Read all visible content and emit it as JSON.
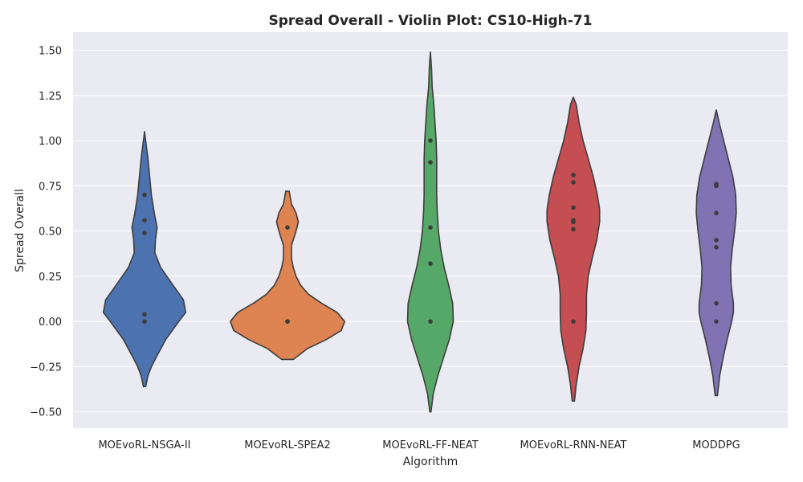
{
  "chart_data": {
    "type": "violin",
    "title": "Spread Overall - Violin Plot: CS10-High-71",
    "xlabel": "Algorithm",
    "ylabel": "Spread Overall",
    "ylim": [
      -0.59,
      1.6
    ],
    "yticks": [
      -0.5,
      -0.25,
      0.0,
      0.25,
      0.5,
      0.75,
      1.0,
      1.25,
      1.5
    ],
    "ytick_labels": [
      "−0.50",
      "−0.25",
      "0.00",
      "0.25",
      "0.50",
      "0.75",
      "1.00",
      "1.25",
      "1.50"
    ],
    "grid": true,
    "background_color": "#eaeaf2",
    "categories": [
      "MOEvoRL-NSGA-II",
      "MOEvoRL-SPEA2",
      "MOEvoRL-FF-NEAT",
      "MOEvoRL-RNN-NEAT",
      "MODDPG"
    ],
    "series": [
      {
        "name": "MOEvoRL-NSGA-II",
        "color": "#4c72b0",
        "points": [
          0.0,
          0.0,
          0.04,
          0.49,
          0.56,
          0.7
        ],
        "density_profile": [
          [
            -0.36,
            0.02
          ],
          [
            -0.3,
            0.06
          ],
          [
            -0.25,
            0.12
          ],
          [
            -0.2,
            0.2
          ],
          [
            -0.1,
            0.37
          ],
          [
            0.0,
            0.6
          ],
          [
            0.05,
            0.72
          ],
          [
            0.12,
            0.68
          ],
          [
            0.2,
            0.5
          ],
          [
            0.3,
            0.28
          ],
          [
            0.38,
            0.18
          ],
          [
            0.45,
            0.19
          ],
          [
            0.52,
            0.22
          ],
          [
            0.6,
            0.17
          ],
          [
            0.7,
            0.12
          ],
          [
            0.8,
            0.09
          ],
          [
            0.9,
            0.06
          ],
          [
            1.0,
            0.02
          ],
          [
            1.05,
            0.0
          ]
        ]
      },
      {
        "name": "MOEvoRL-SPEA2",
        "color": "#dd8452",
        "points": [
          0.0,
          0.0,
          0.0,
          0.0,
          0.0,
          0.52
        ],
        "density_profile": [
          [
            -0.21,
            0.1
          ],
          [
            -0.15,
            0.35
          ],
          [
            -0.1,
            0.68
          ],
          [
            -0.05,
            0.94
          ],
          [
            0.0,
            1.0
          ],
          [
            0.05,
            0.87
          ],
          [
            0.1,
            0.6
          ],
          [
            0.15,
            0.37
          ],
          [
            0.2,
            0.23
          ],
          [
            0.25,
            0.15
          ],
          [
            0.3,
            0.1
          ],
          [
            0.35,
            0.07
          ],
          [
            0.42,
            0.07
          ],
          [
            0.5,
            0.15
          ],
          [
            0.55,
            0.19
          ],
          [
            0.6,
            0.15
          ],
          [
            0.65,
            0.07
          ],
          [
            0.72,
            0.03
          ]
        ]
      },
      {
        "name": "MOEvoRL-FF-NEAT",
        "color": "#55a868",
        "points": [
          0.0,
          0.0,
          0.32,
          0.52,
          0.88,
          1.0
        ],
        "density_profile": [
          [
            -0.5,
            0.01
          ],
          [
            -0.4,
            0.05
          ],
          [
            -0.3,
            0.13
          ],
          [
            -0.2,
            0.23
          ],
          [
            -0.1,
            0.33
          ],
          [
            0.0,
            0.4
          ],
          [
            0.1,
            0.39
          ],
          [
            0.2,
            0.32
          ],
          [
            0.3,
            0.24
          ],
          [
            0.4,
            0.18
          ],
          [
            0.5,
            0.14
          ],
          [
            0.6,
            0.12
          ],
          [
            0.7,
            0.11
          ],
          [
            0.8,
            0.11
          ],
          [
            0.9,
            0.11
          ],
          [
            1.0,
            0.1
          ],
          [
            1.1,
            0.08
          ],
          [
            1.2,
            0.06
          ],
          [
            1.3,
            0.03
          ],
          [
            1.4,
            0.02
          ],
          [
            1.49,
            0.0
          ]
        ]
      },
      {
        "name": "MOEvoRL-RNN-NEAT",
        "color": "#c44e52",
        "points": [
          0.0,
          0.51,
          0.55,
          0.56,
          0.63,
          0.77,
          0.81
        ],
        "density_profile": [
          [
            -0.44,
            0.02
          ],
          [
            -0.35,
            0.05
          ],
          [
            -0.25,
            0.1
          ],
          [
            -0.15,
            0.17
          ],
          [
            -0.05,
            0.22
          ],
          [
            0.05,
            0.23
          ],
          [
            0.15,
            0.23
          ],
          [
            0.25,
            0.26
          ],
          [
            0.35,
            0.33
          ],
          [
            0.45,
            0.41
          ],
          [
            0.55,
            0.46
          ],
          [
            0.62,
            0.46
          ],
          [
            0.7,
            0.42
          ],
          [
            0.8,
            0.35
          ],
          [
            0.9,
            0.26
          ],
          [
            1.0,
            0.17
          ],
          [
            1.1,
            0.1
          ],
          [
            1.2,
            0.05
          ],
          [
            1.24,
            0.0
          ]
        ]
      },
      {
        "name": "MODDPG",
        "color": "#8172b3",
        "points": [
          0.0,
          0.1,
          0.41,
          0.45,
          0.6,
          0.75,
          0.76
        ],
        "density_profile": [
          [
            -0.41,
            0.02
          ],
          [
            -0.3,
            0.06
          ],
          [
            -0.2,
            0.12
          ],
          [
            -0.1,
            0.19
          ],
          [
            0.0,
            0.27
          ],
          [
            0.05,
            0.3
          ],
          [
            0.1,
            0.3
          ],
          [
            0.2,
            0.26
          ],
          [
            0.3,
            0.25
          ],
          [
            0.4,
            0.28
          ],
          [
            0.5,
            0.32
          ],
          [
            0.6,
            0.35
          ],
          [
            0.7,
            0.34
          ],
          [
            0.8,
            0.29
          ],
          [
            0.9,
            0.21
          ],
          [
            1.0,
            0.13
          ],
          [
            1.1,
            0.05
          ],
          [
            1.17,
            0.0
          ]
        ]
      }
    ]
  }
}
